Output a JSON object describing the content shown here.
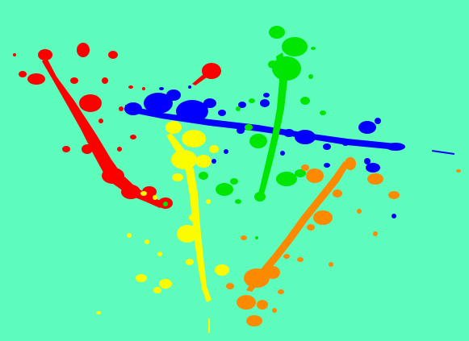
{
  "background_color": "#5efcbc",
  "splatters": [
    {
      "name": "red-splatter",
      "color": "#fc0000"
    },
    {
      "name": "blue-splatter",
      "color": "#0000fc"
    },
    {
      "name": "green-splatter",
      "color": "#00e600"
    },
    {
      "name": "yellow-splatter",
      "color": "#fcfc00"
    },
    {
      "name": "orange-splatter",
      "color": "#fc8a00"
    }
  ]
}
